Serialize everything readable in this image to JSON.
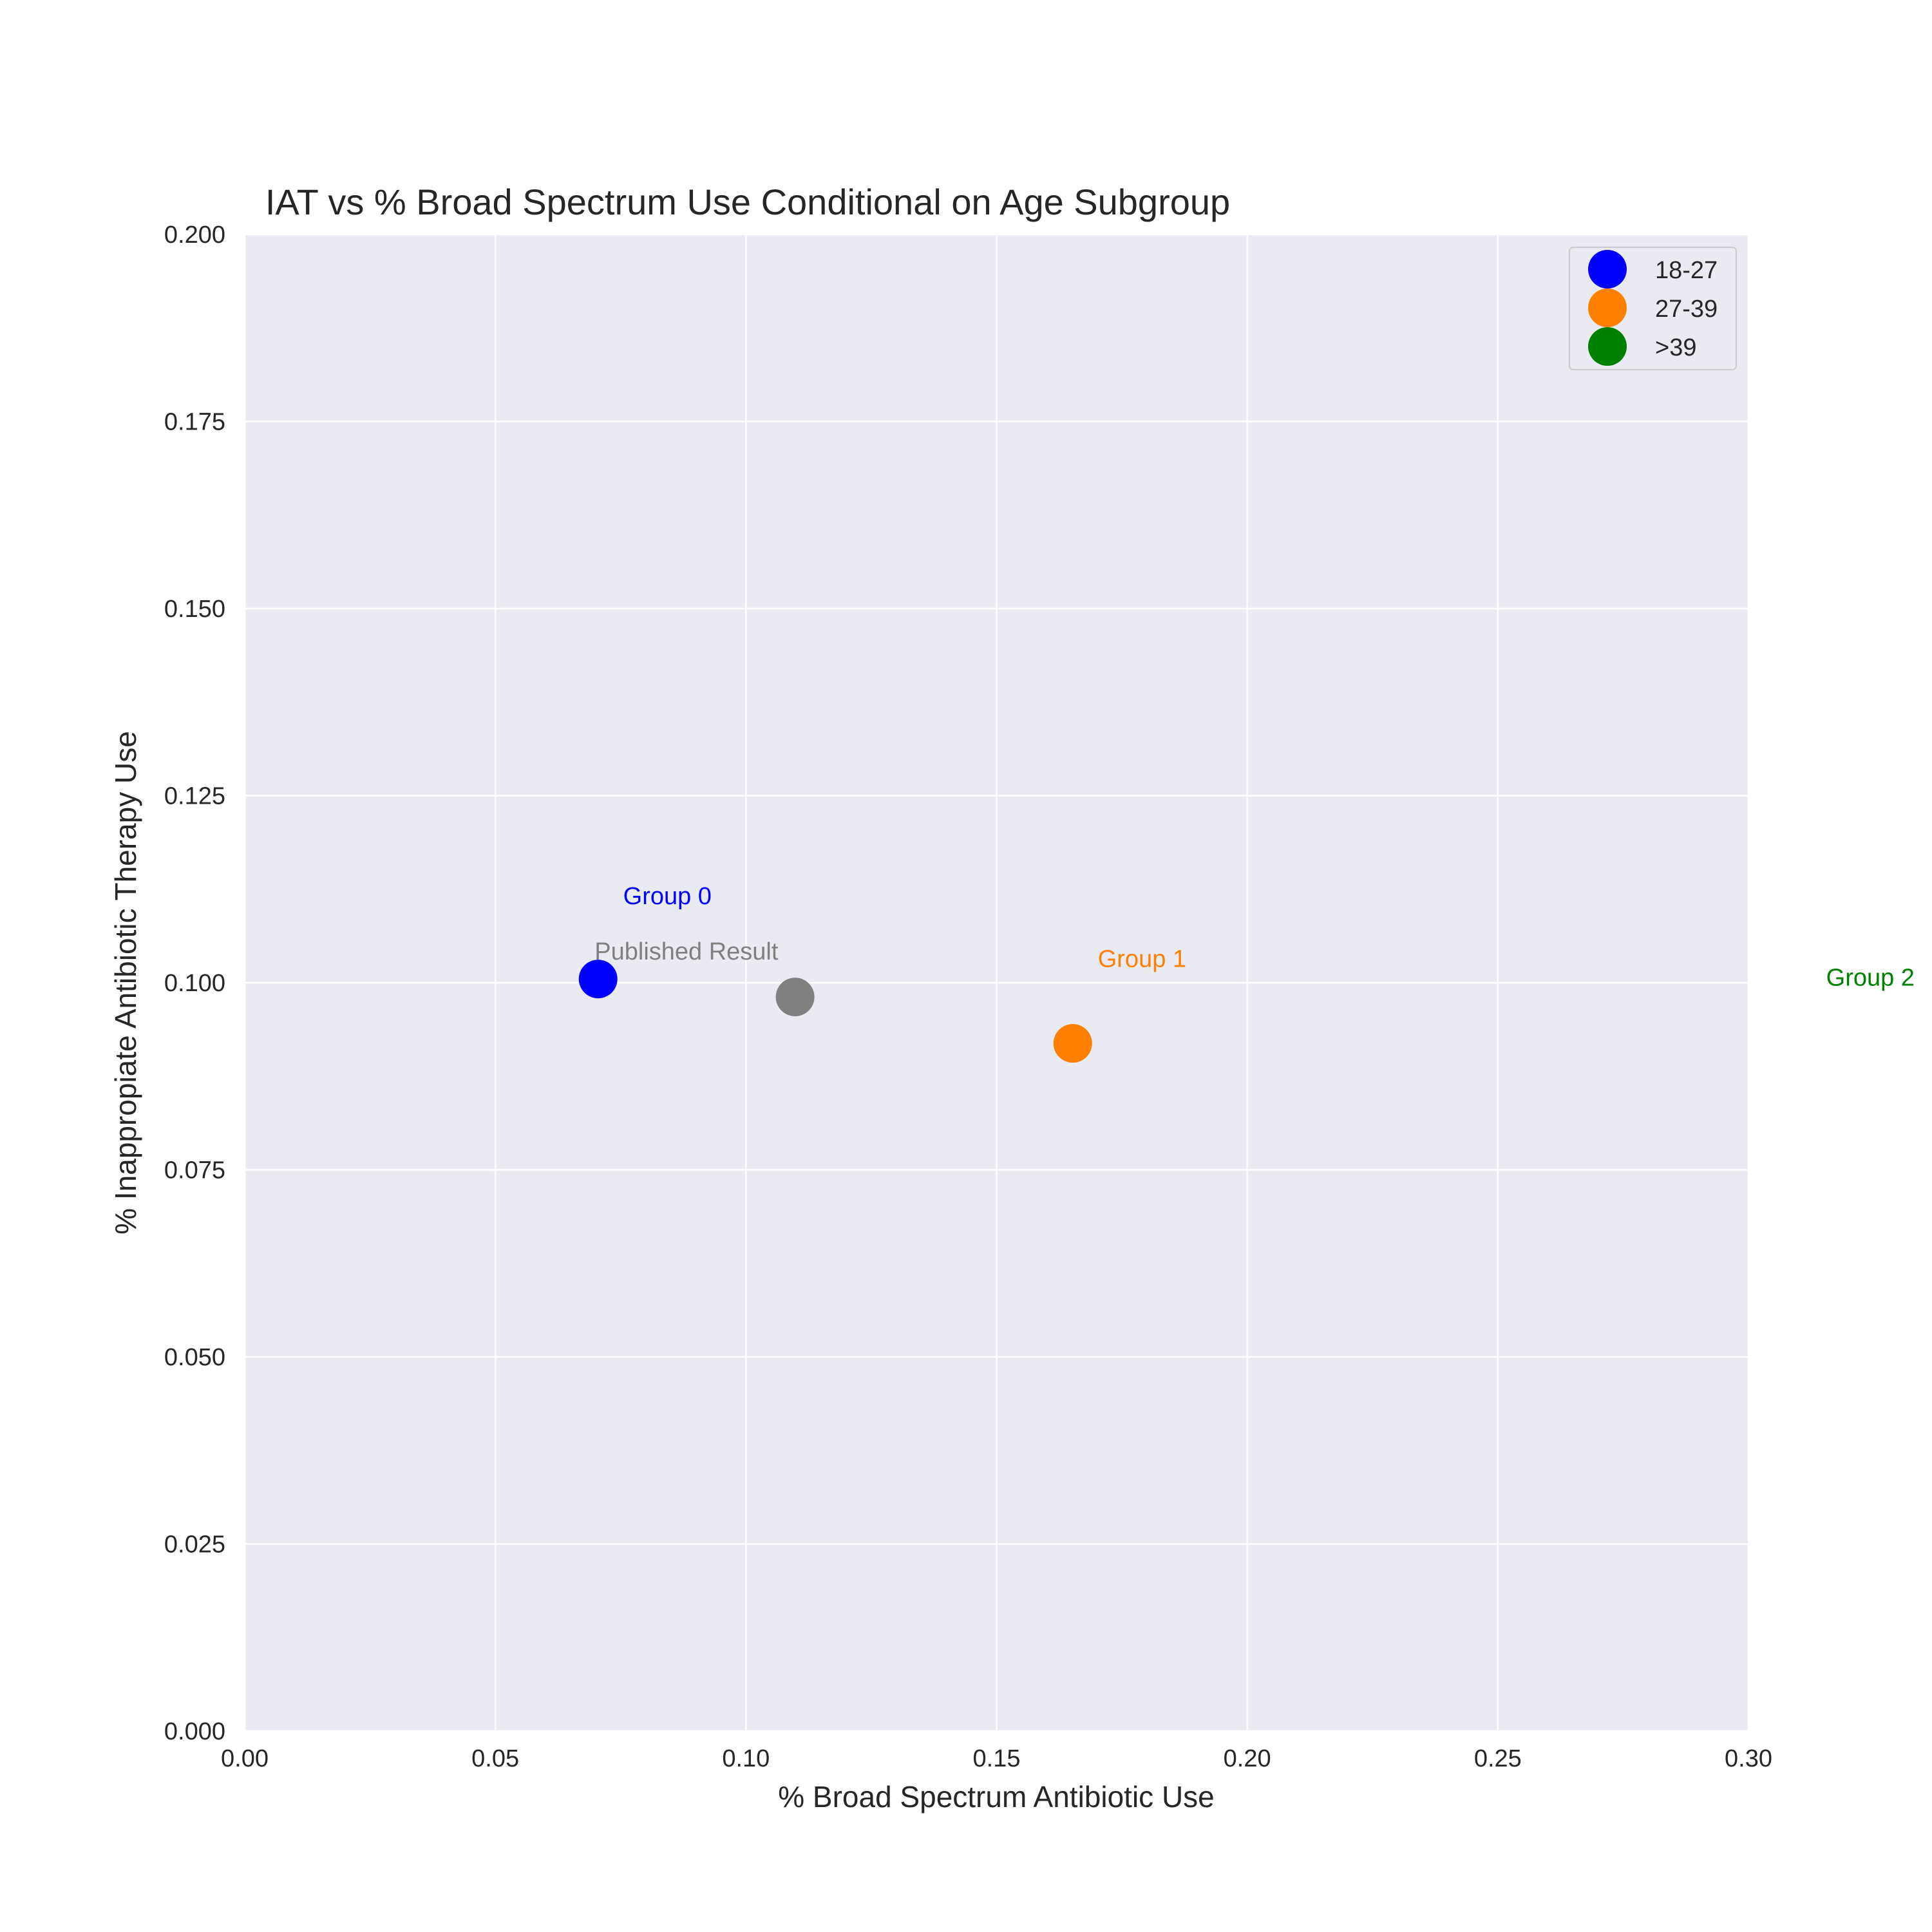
{
  "chart_data": {
    "type": "scatter",
    "title": "IAT vs % Broad Spectrum Use Conditional on Age Subgroup",
    "xlabel": "% Broad Spectrum Antibiotic Use",
    "ylabel": "% Inappropiate Antibiotic Therapy Use",
    "xlim": [
      0.0,
      0.3
    ],
    "ylim": [
      0.0,
      0.2
    ],
    "xticks": [
      0.0,
      0.05,
      0.1,
      0.15,
      0.2,
      0.25,
      0.3
    ],
    "yticks": [
      0.0,
      0.025,
      0.05,
      0.075,
      0.1,
      0.125,
      0.15,
      0.175,
      0.2
    ],
    "xtick_labels": [
      "0.00",
      "0.05",
      "0.10",
      "0.15",
      "0.20",
      "0.25",
      "0.30"
    ],
    "ytick_labels": [
      "0.000",
      "0.025",
      "0.050",
      "0.075",
      "0.100",
      "0.125",
      "0.150",
      "0.175",
      "0.200"
    ],
    "grid": true,
    "background": "#eaeaf2",
    "legend_position": "top-right",
    "series": [
      {
        "name": "18-27",
        "color": "#0000ff",
        "x": [
          0.0705
        ],
        "y": [
          0.1005
        ]
      },
      {
        "name": "27-39",
        "color": "#ff8000",
        "x": [
          0.1652
        ],
        "y": [
          0.0919
        ]
      },
      {
        "name": ">39",
        "color": "#008000",
        "x": [],
        "y": []
      }
    ],
    "published_point": {
      "x": 0.1098,
      "y": 0.0981,
      "color": "#808080"
    },
    "annotations": [
      {
        "text": "Group 0",
        "x": 0.0755,
        "y": 0.1105,
        "color": "#0000ff"
      },
      {
        "text": "Published Result",
        "x": 0.0698,
        "y": 0.1031,
        "color": "#808080"
      },
      {
        "text": "Group 1",
        "x": 0.1702,
        "y": 0.1021,
        "color": "#ff8000"
      },
      {
        "text": "Group 2",
        "x": 0.3155,
        "y": 0.0996,
        "color": "#008000"
      }
    ]
  }
}
